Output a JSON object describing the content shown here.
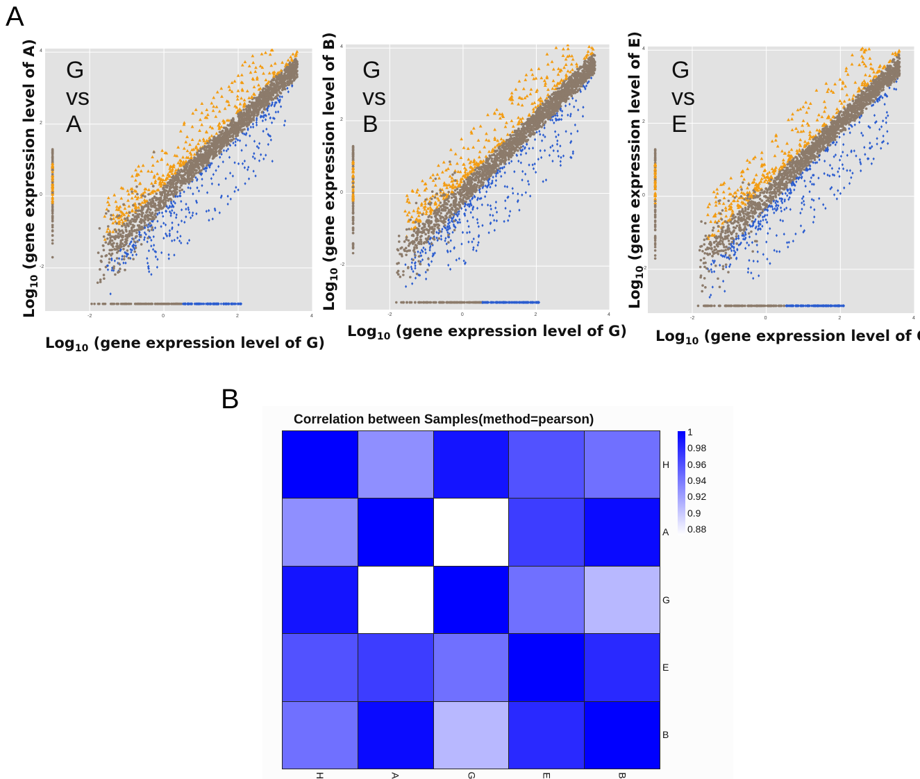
{
  "panels": {
    "a": "A",
    "b": "B"
  },
  "chart_data": [
    {
      "type": "scatter",
      "inset_label": "G vs A",
      "xlabel_prefix": "Log",
      "xlabel_sub": "10",
      "xlabel_rest": " (gene expression level of G)",
      "ylabel_prefix": "Log",
      "ylabel_sub": "10",
      "ylabel_rest": " (gene expression level of A)",
      "xlim": [
        -3.2,
        4.0
      ],
      "ylim": [
        -3.2,
        4.1
      ],
      "xticks": [
        "-2",
        "0",
        "2",
        "4"
      ],
      "yticks": [
        "-2",
        "0",
        "2",
        "4"
      ],
      "grid": true,
      "series": [
        {
          "color": "#f39c12",
          "marker": "triangle"
        },
        {
          "color": "#8c7b6b",
          "marker": "circle"
        },
        {
          "color": "#2a5ccf",
          "marker": "diamond"
        }
      ]
    },
    {
      "type": "scatter",
      "inset_label": "G vs B",
      "xlabel_prefix": "Log",
      "xlabel_sub": "10",
      "xlabel_rest": " (gene expression level of G)",
      "ylabel_prefix": "Log",
      "ylabel_sub": "10",
      "ylabel_rest": " (gene expression level of B)",
      "xlim": [
        -3.2,
        4.0
      ],
      "ylim": [
        -3.2,
        4.1
      ],
      "xticks": [
        "-2",
        "0",
        "2",
        "4"
      ],
      "yticks": [
        "-2",
        "0",
        "2",
        "4"
      ],
      "grid": true,
      "series": [
        {
          "color": "#f39c12",
          "marker": "triangle"
        },
        {
          "color": "#8c7b6b",
          "marker": "circle"
        },
        {
          "color": "#2a5ccf",
          "marker": "diamond"
        }
      ]
    },
    {
      "type": "scatter",
      "inset_label": "G vs E",
      "xlabel_prefix": "Log",
      "xlabel_sub": "10",
      "xlabel_rest": " (gene expression level of G)",
      "ylabel_prefix": "Log",
      "ylabel_sub": "10",
      "ylabel_rest": " (gene expression level of E)",
      "xlim": [
        -3.2,
        4.0
      ],
      "ylim": [
        -3.2,
        4.1
      ],
      "xticks": [
        "-2",
        "0",
        "2",
        "4"
      ],
      "yticks": [
        "-2",
        "0",
        "2",
        "4"
      ],
      "grid": true,
      "series": [
        {
          "color": "#f39c12",
          "marker": "triangle"
        },
        {
          "color": "#8c7b6b",
          "marker": "circle"
        },
        {
          "color": "#2a5ccf",
          "marker": "diamond"
        }
      ]
    },
    {
      "type": "heatmap",
      "title": "Correlation between Samples(method=pearson)",
      "rows": [
        "H",
        "A",
        "G",
        "E",
        "B"
      ],
      "cols": [
        "H",
        "A",
        "G",
        "E",
        "B"
      ],
      "values": [
        [
          1.0,
          0.93,
          0.99,
          0.96,
          0.945
        ],
        [
          0.93,
          1.0,
          0.875,
          0.97,
          0.995
        ],
        [
          0.99,
          0.875,
          1.0,
          0.945,
          0.91
        ],
        [
          0.96,
          0.97,
          0.945,
          1.0,
          0.98
        ],
        [
          0.945,
          0.995,
          0.91,
          0.98,
          1.0
        ]
      ],
      "legend_ticks": [
        "1",
        "0.98",
        "0.96",
        "0.94",
        "0.92",
        "0.9",
        "0.88"
      ],
      "color_high": "#0000ff",
      "color_low": "#ffffff"
    }
  ]
}
